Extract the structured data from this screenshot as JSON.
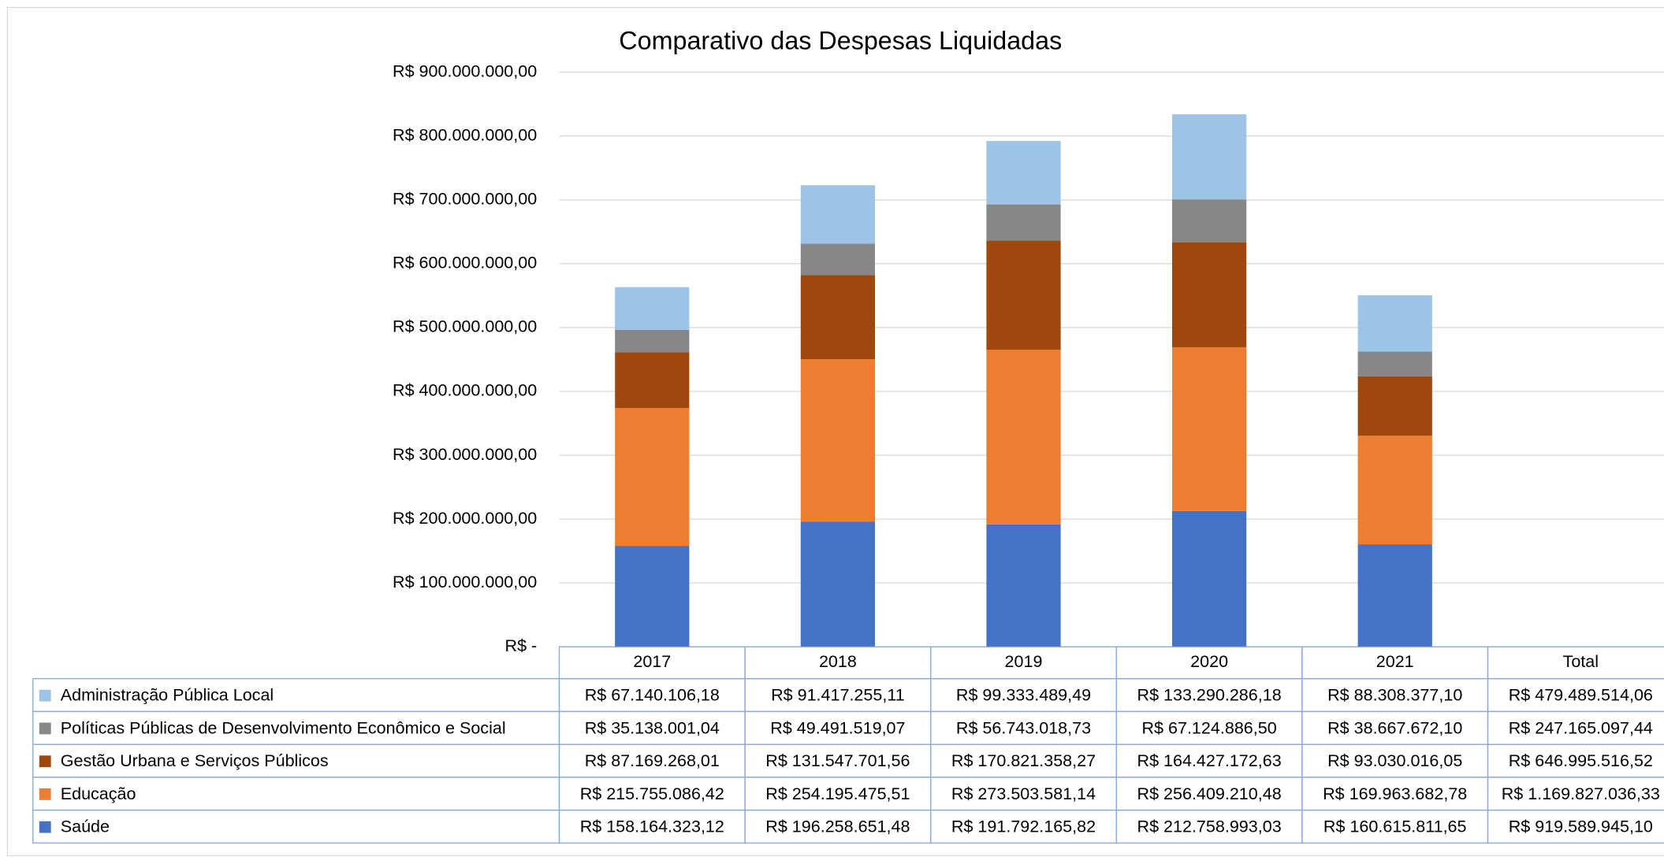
{
  "chart_data": {
    "type": "bar",
    "stacked": true,
    "title": "Comparativo das Despesas Liquidadas",
    "categories": [
      "2017",
      "2018",
      "2019",
      "2020",
      "2021"
    ],
    "total_header": "Total",
    "ylim": [
      0,
      900000000
    ],
    "yticks": [
      {
        "value": 0,
        "label": "R$ -"
      },
      {
        "value": 100000000,
        "label": "R$ 100.000.000,00"
      },
      {
        "value": 200000000,
        "label": "R$ 200.000.000,00"
      },
      {
        "value": 300000000,
        "label": "R$ 300.000.000,00"
      },
      {
        "value": 400000000,
        "label": "R$ 400.000.000,00"
      },
      {
        "value": 500000000,
        "label": "R$ 500.000.000,00"
      },
      {
        "value": 600000000,
        "label": "R$ 600.000.000,00"
      },
      {
        "value": 700000000,
        "label": "R$ 700.000.000,00"
      },
      {
        "value": 800000000,
        "label": "R$ 800.000.000,00"
      },
      {
        "value": 900000000,
        "label": "R$ 900.000.000,00"
      }
    ],
    "grid": true,
    "series": [
      {
        "name": "Saúde",
        "color": "#4472c4",
        "values": [
          158164323.12,
          196258651.48,
          191792165.82,
          212758993.03,
          160615811.65
        ],
        "value_labels": [
          "R$ 158.164.323,12",
          "R$ 196.258.651,48",
          "R$ 191.792.165,82",
          "R$ 212.758.993,03",
          "R$ 160.615.811,65"
        ],
        "total": "R$ 919.589.945,10"
      },
      {
        "name": "Educação",
        "color": "#ed7d31",
        "values": [
          215755086.42,
          254195475.51,
          273503581.14,
          256409210.48,
          169963682.78
        ],
        "value_labels": [
          "R$ 215.755.086,42",
          "R$ 254.195.475,51",
          "R$ 273.503.581,14",
          "R$ 256.409.210,48",
          "R$ 169.963.682,78"
        ],
        "total": "R$ 1.169.827.036,33"
      },
      {
        "name": "Gestão Urbana e Serviços Públicos",
        "color": "#9e480e",
        "values": [
          87169268.01,
          131547701.56,
          170821358.27,
          164427172.63,
          93030016.05
        ],
        "value_labels": [
          "R$ 87.169.268,01",
          "R$ 131.547.701,56",
          "R$ 170.821.358,27",
          "R$ 164.427.172,63",
          "R$ 93.030.016,05"
        ],
        "total": "R$ 646.995.516,52"
      },
      {
        "name": "Políticas Públicas de Desenvolvimento Econômico e Social",
        "color": "#878787",
        "values": [
          35138001.04,
          49491519.07,
          56743018.73,
          67124886.5,
          38667672.1
        ],
        "value_labels": [
          "R$ 35.138.001,04",
          "R$ 49.491.519,07",
          "R$ 56.743.018,73",
          "R$ 67.124.886,50",
          "R$ 38.667.672,10"
        ],
        "total": "R$ 247.165.097,44"
      },
      {
        "name": "Administração Pública Local",
        "color": "#9dc3e6",
        "values": [
          67140106.18,
          91417255.11,
          99333489.49,
          133290286.18,
          88308377.1
        ],
        "value_labels": [
          "R$ 67.140.106,18",
          "R$ 91.417.255,11",
          "R$ 99.333.489,49",
          "R$ 133.290.286,18",
          "R$ 88.308.377,10"
        ],
        "total": "R$ 479.489.514,06"
      }
    ]
  }
}
